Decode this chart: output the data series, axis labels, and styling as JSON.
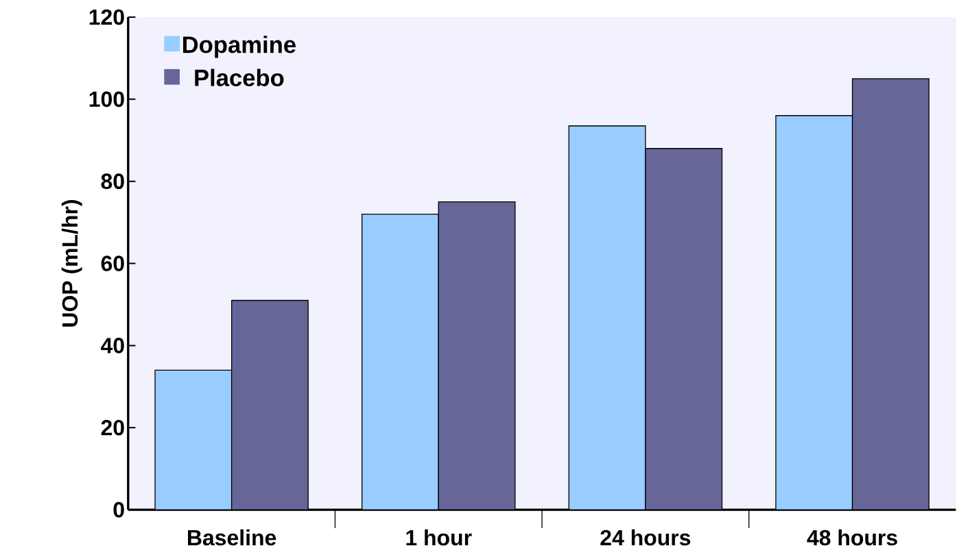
{
  "chart_data": {
    "type": "bar",
    "ylabel": "UOP (mL/hr)",
    "categories": [
      "Baseline",
      "1 hour",
      "24 hours",
      "48 hours"
    ],
    "series": [
      {
        "name": "Dopamine",
        "color": "#99ccff",
        "values": [
          34,
          72,
          93.5,
          96
        ]
      },
      {
        "name": "Placebo",
        "color": "#666699",
        "values": [
          51,
          75,
          88,
          105
        ]
      }
    ],
    "ylim": [
      0,
      120
    ],
    "yticks": [
      0,
      20,
      40,
      60,
      80,
      100,
      120
    ],
    "legend": "top left"
  }
}
